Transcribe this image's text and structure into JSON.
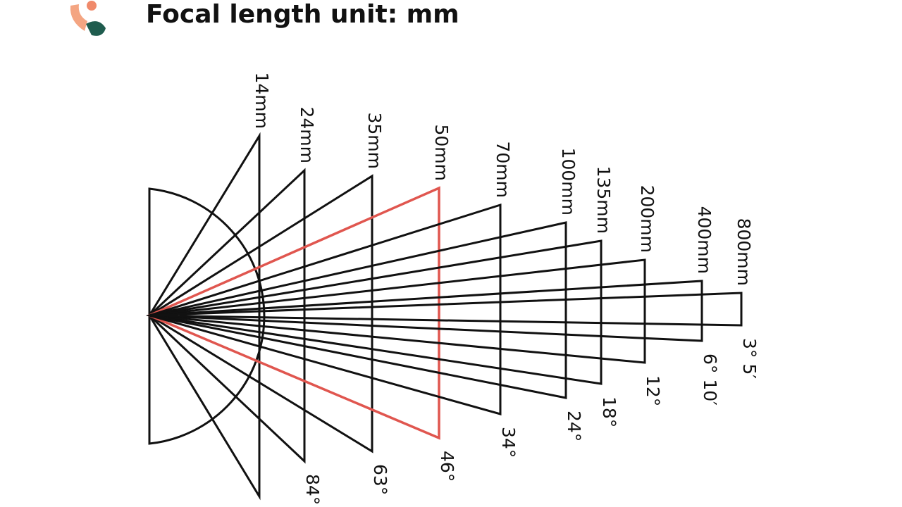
{
  "header": {
    "title": "Focal length unit: mm"
  },
  "lenses": [
    {
      "focal": "14mm"
    },
    {
      "focal": "24mm",
      "angle": "84°"
    },
    {
      "focal": "35mm",
      "angle": "63°"
    },
    {
      "focal": "50mm",
      "angle": "46°"
    },
    {
      "focal": "70mm",
      "angle": "34°"
    },
    {
      "focal": "100mm",
      "angle": "24°"
    },
    {
      "focal": "135mm",
      "angle": "18°"
    },
    {
      "focal": "200mm",
      "angle": "12°"
    },
    {
      "focal": "400mm",
      "angle": "6° 10′"
    },
    {
      "focal": "800mm",
      "angle": "3° 5′"
    }
  ]
}
